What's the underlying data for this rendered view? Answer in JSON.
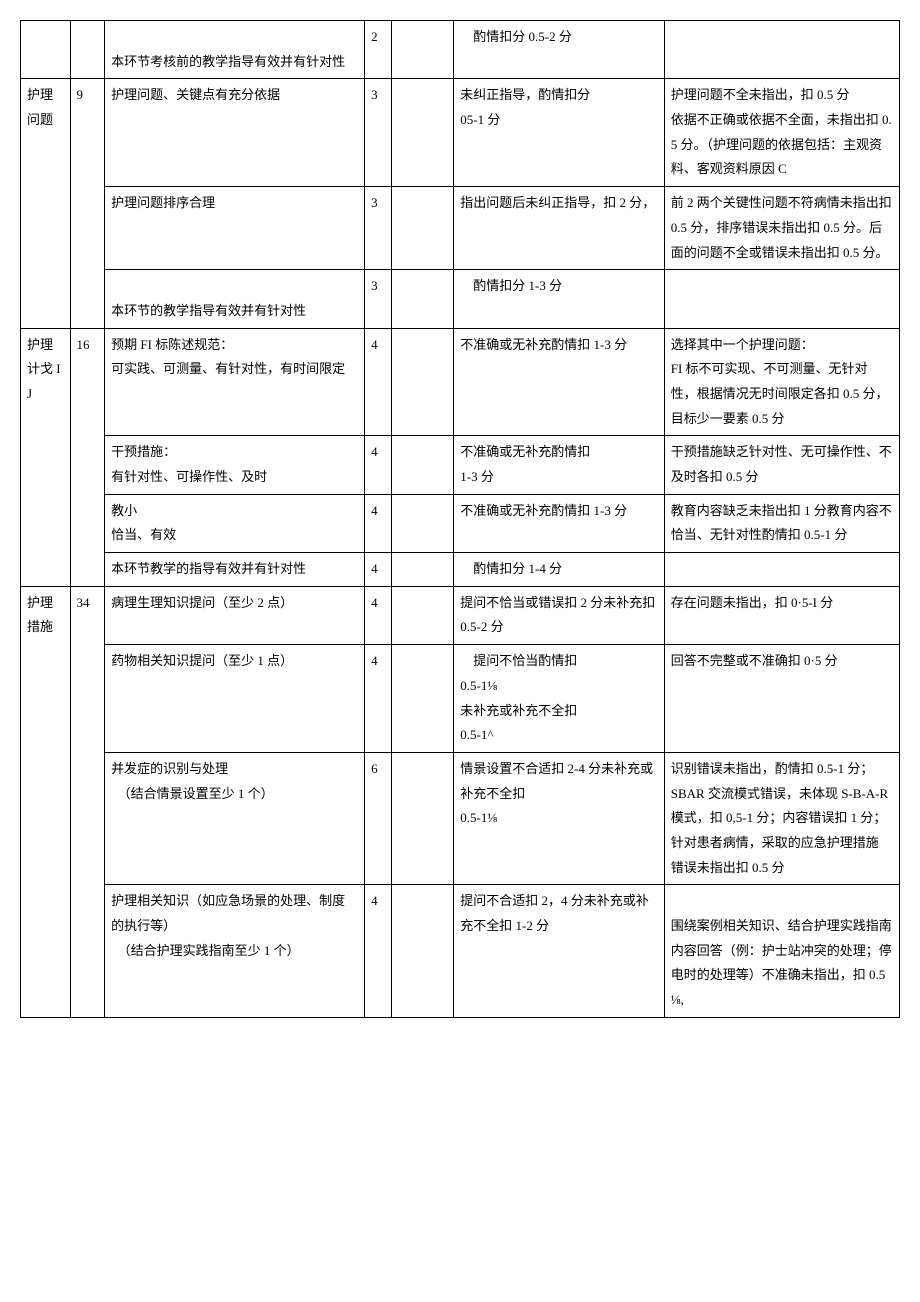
{
  "rows": [
    {
      "c3": "\n本环节考核前的教学指导有效并有针对性",
      "c4": "2",
      "c6": "　酌情扣分 0.5-2 分",
      "c7": ""
    },
    {
      "c1": "护理问题",
      "c2": "9",
      "c3": "护理问题、关键点有充分依据",
      "c4": "3",
      "c6": "未纠正指导，酌情扣分\n05-1 分",
      "c7": "护理问题不全未指出，扣 0.5 分\n依据不正确或依据不全面，未指出扣 0.5 分。（护理问题的依据包括：主观资料、客观资料原因 C",
      "rowspan1": 3
    },
    {
      "c3": "护理问题排序合理",
      "c4": "3",
      "c6": "指出问题后未纠正指导，扣 2 分，",
      "c7": "前 2 两个关键性问题不符病情未指出扣 0.5 分，排序错误未指出扣 0.5 分。后面的问题不全或错误未指出扣 0.5 分。"
    },
    {
      "c3": "\n本环节的教学指导有效并有针对性",
      "c4": "3",
      "c6": "　酌情扣分 1-3 分",
      "c7": ""
    },
    {
      "c1": "护理计戈 IJ",
      "c2": "16",
      "c3": "预期 FI 标陈述规范：\n可实践、可测量、有针对性，有时间限定",
      "c4": "4",
      "c6": "不准确或无补充酌情扣 1-3 分",
      "c7": "选择其中一个护理问题：\nFI 标不可实现、不可测量、无针对性，根据情况无时间限定各扣 0.5 分，目标少一要素 0.5 分",
      "rowspan1": 4
    },
    {
      "c3": "干预措施：\n有针对性、可操作性、及时",
      "c4": "4",
      "c6": "不准确或无补充酌情扣\n1-3 分",
      "c7": "干预措施缺乏针对性、无可操作性、不及时各扣 0.5 分"
    },
    {
      "c3": "教小\n恰当、有效",
      "c4": "4",
      "c6": "不准确或无补充酌情扣 1-3 分",
      "c7": "教育内容缺乏未指出扣 1 分教育内容不恰当、无针对性酌情扣 0.5-1 分"
    },
    {
      "c3": "本环节教学的指导有效并有针对性",
      "c4": "4",
      "c6": "　酌情扣分 1-4 分",
      "c7": ""
    },
    {
      "c1": "护理措施",
      "c2": "34",
      "c3": "病理生理知识提问（至少 2 点）",
      "c4": "4",
      "c6": "提问不恰当或错误扣 2 分未补充扣 0.5-2 分",
      "c7": "存在问题未指出，扣 0·5-I 分",
      "rowspan1": 4
    },
    {
      "c3": "药物相关知识提问（至少 1 点）",
      "c4": "4",
      "c6": "　提问不恰当酌情扣\n0.5-1⅛\n未补充或补充不全扣\n0.5-1^",
      "c7": "回答不完整或不准确扣 0·5 分"
    },
    {
      "c3": "并发症的识别与处理\n　（结合情景设置至少 1 个）",
      "c4": "6",
      "c6": "情景设置不合适扣 2-4 分未补充或补充不全扣\n0.5-1⅛",
      "c7": "识别错误未指出，酌情扣 0.5-1 分；\nSBAR 交流模式错误，未体现 S-B-A-R 模式，扣 0,5-1 分；内容错误扣 1 分；针对患者病情，采取的应急护理措施\n错误未指出扣 0.5 分"
    },
    {
      "c3": "护理相关知识（如应急场景的处理、制度的执行等）\n　（结合护理实践指南至少 1 个）",
      "c4": "4",
      "c6": "提问不合适扣 2，4 分未补充或补充不全扣 1-2 分",
      "c7": "\n围绕案例相关知识、结合护理实践指南内容回答（例：护士站冲突的处理；停电时的处理等）不准确未指出，扣 0.5⅛,"
    }
  ]
}
